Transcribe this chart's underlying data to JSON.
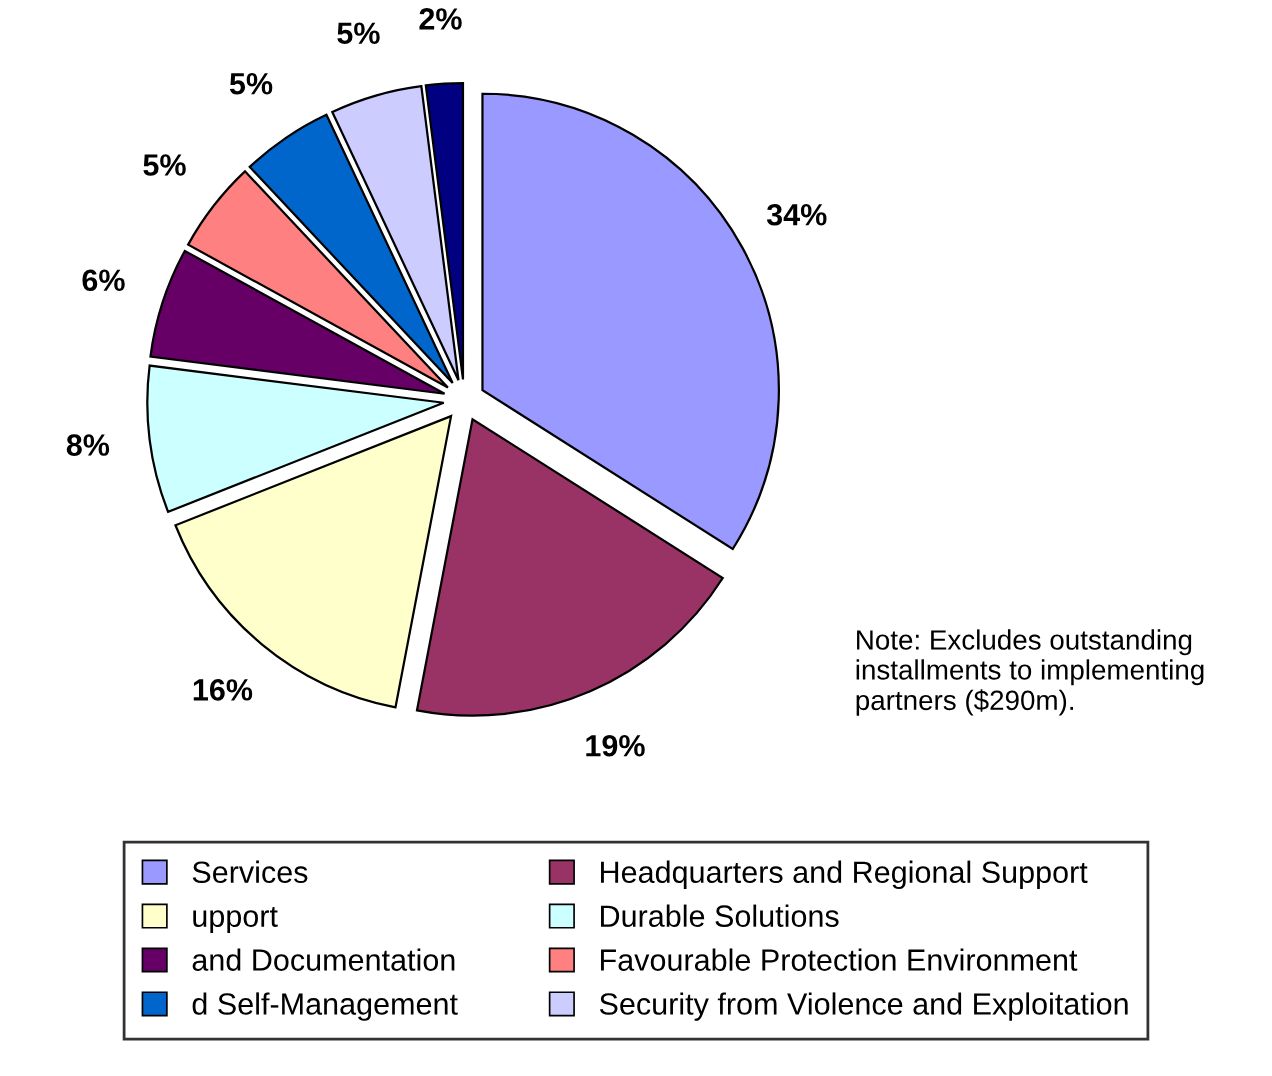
{
  "chart_data": {
    "type": "pie",
    "categories": [
      "Services",
      "Headquarters and Regional Support",
      "upport",
      "Durable Solutions",
      "and Documentation",
      "Favourable Protection Environment",
      "d Self-Management",
      "Security from Violence and Exploitation",
      null
    ],
    "values": [
      34,
      19,
      16,
      8,
      6,
      5,
      5,
      5,
      2
    ],
    "colors": [
      "#9999ff",
      "#993366",
      "#ffffcc",
      "#ccffff",
      "#660066",
      "#ff8080",
      "#0066cc",
      "#ccccff",
      "#000080"
    ],
    "value_labels": [
      "34%",
      "19%",
      "16%",
      "8%",
      "6%",
      "5%",
      "5%",
      "5%",
      "2%"
    ],
    "legend": "bottom",
    "annotations": [
      "Note: Excludes outstanding\ninstallments to implementing\npartners ($290m)."
    ]
  }
}
